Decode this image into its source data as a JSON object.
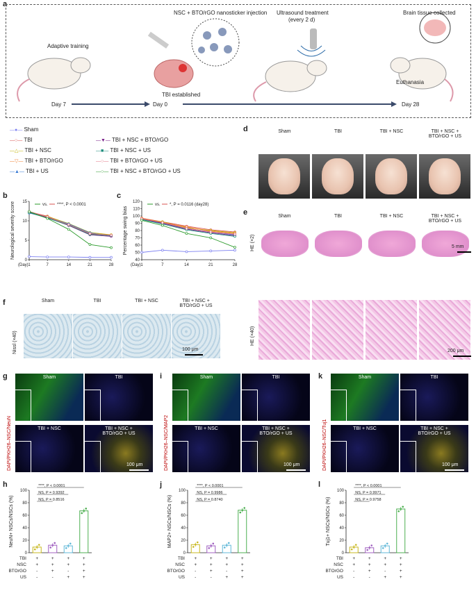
{
  "panels": {
    "a": "a",
    "b": "b",
    "c": "c",
    "d": "d",
    "e": "e",
    "f": "f",
    "g": "g",
    "h": "h",
    "i": "i",
    "j": "j",
    "k": "k",
    "l": "l"
  },
  "panel_a": {
    "steps": [
      "Adaptive training",
      "NSC + BTO/rGO nanosticker injection",
      "TBI established",
      "Ultrasound treatment",
      "(every 2 d)",
      "Brain tissue collected",
      "Euthanasia"
    ],
    "timeline": [
      "Day 7",
      "Day 0",
      "Day 28"
    ]
  },
  "legend": {
    "col1": [
      {
        "label": "Sham",
        "color": "#7b7ff0",
        "marker": "●"
      },
      {
        "label": "TBI",
        "color": "#d9534f",
        "marker": "○"
      },
      {
        "label": "TBI + NSC",
        "color": "#c0b300",
        "marker": "△"
      },
      {
        "label": "TBI + BTO/rGO",
        "color": "#f08030",
        "marker": "▽"
      },
      {
        "label": "TBI + US",
        "color": "#3a7bd5",
        "marker": "▲"
      }
    ],
    "col2": [
      {
        "label": "TBI + NSC + BTO/rGO",
        "color": "#7a1f8a",
        "marker": "▼"
      },
      {
        "label": "TBI + NSC + US",
        "color": "#1a8a7a",
        "marker": "■"
      },
      {
        "label": "TBI + BTO/rGO + US",
        "color": "#e07080",
        "marker": "○"
      },
      {
        "label": "TBI + NSC + BTO/rGO + US",
        "color": "#2a9a2a",
        "marker": "○"
      }
    ]
  },
  "chart_b": {
    "ylabel": "Neurological severity score",
    "annot_vs": "vs.",
    "annot_p": "****, P < 0.0001",
    "xlabel": "(Day)",
    "ticks_x": [
      "1",
      "7",
      "14",
      "21",
      "28"
    ],
    "ticks_y": [
      "0",
      "5",
      "10",
      "15"
    ]
  },
  "chart_c": {
    "ylabel": "Percentage swing bias",
    "annot_vs": "vs.",
    "annot_p": "*, P = 0.0116 (day28)",
    "xlabel": "(Day)",
    "ticks_x": [
      "1",
      "7",
      "14",
      "21",
      "28"
    ],
    "ticks_y": [
      "40",
      "50",
      "60",
      "70",
      "80",
      "90",
      "100",
      "110",
      "120"
    ]
  },
  "chart_data": [
    {
      "type": "line",
      "x": [
        1,
        7,
        14,
        21,
        28
      ],
      "ylim": [
        0,
        15
      ],
      "series": [
        {
          "name": "Sham",
          "values": [
            0.8,
            0.7,
            0.7,
            0.6,
            0.6
          ]
        },
        {
          "name": "TBI",
          "values": [
            12.3,
            11.2,
            9.1,
            6.6,
            6.2
          ]
        },
        {
          "name": "TBI + NSC",
          "values": [
            12.1,
            11.1,
            9.3,
            7.0,
            6.4
          ]
        },
        {
          "name": "TBI + BTO/rGO",
          "values": [
            12.2,
            11.0,
            9.0,
            6.8,
            6.3
          ]
        },
        {
          "name": "TBI + US",
          "values": [
            12.0,
            10.9,
            9.2,
            6.9,
            6.1
          ]
        },
        {
          "name": "TBI + NSC + BTO/rGO",
          "values": [
            12.3,
            10.8,
            8.8,
            6.4,
            6.0
          ]
        },
        {
          "name": "TBI + NSC + US",
          "values": [
            12.1,
            10.7,
            8.9,
            6.5,
            6.2
          ]
        },
        {
          "name": "TBI + BTO/rGO + US",
          "values": [
            12.4,
            11.0,
            9.0,
            6.7,
            6.3
          ]
        },
        {
          "name": "TBI + NSC + BTO/rGO + US",
          "values": [
            12.4,
            10.6,
            7.8,
            3.9,
            3.1
          ]
        }
      ]
    },
    {
      "type": "line",
      "x": [
        1,
        7,
        14,
        21,
        28
      ],
      "ylim": [
        40,
        120
      ],
      "series": [
        {
          "name": "Sham",
          "values": [
            50,
            53,
            51,
            52,
            53
          ]
        },
        {
          "name": "TBI",
          "values": [
            97,
            92,
            86,
            81,
            78
          ]
        },
        {
          "name": "TBI + NSC",
          "values": [
            96,
            92,
            84,
            80,
            77
          ]
        },
        {
          "name": "TBI + BTO/rGO",
          "values": [
            97,
            91,
            85,
            79,
            76
          ]
        },
        {
          "name": "TBI + US",
          "values": [
            95,
            90,
            83,
            78,
            74
          ]
        },
        {
          "name": "TBI + NSC + BTO/rGO",
          "values": [
            96,
            90,
            82,
            77,
            73
          ]
        },
        {
          "name": "TBI + NSC + US",
          "values": [
            95,
            89,
            81,
            76,
            72
          ]
        },
        {
          "name": "TBI + BTO/rGO + US",
          "values": [
            96,
            91,
            83,
            78,
            75
          ]
        },
        {
          "name": "TBI + NSC + BTO/rGO + US",
          "values": [
            94,
            87,
            76,
            70,
            57
          ]
        }
      ]
    },
    {
      "type": "bar",
      "ylabel": "NeuN+ NSCs/NSCs (%)",
      "categories": [
        "TBI+NSC",
        "TBI+NSC+BTOrGO",
        "TBI+NSC+US",
        "TBI+NSC+BTOrGO+US"
      ],
      "values": [
        9,
        12,
        11,
        67
      ],
      "ylim": [
        0,
        100
      ],
      "annotations": [
        "****, P < 0.0001",
        "NS, P = 0.9392",
        "NS, P = 0.8516"
      ]
    },
    {
      "type": "bar",
      "ylabel": "MAP2+ NSCs/NSCs (%)",
      "categories": [
        "TBI+NSC",
        "TBI+NSC+BTOrGO",
        "TBI+NSC+US",
        "TBI+NSC+BTOrGO+US"
      ],
      "values": [
        13,
        11,
        12,
        68
      ],
      "ylim": [
        0,
        100
      ],
      "annotations": [
        "****, P < 0.0001",
        "NS, P = 0.9986",
        "NS, P = 0.8740"
      ]
    },
    {
      "type": "bar",
      "ylabel": "Tuj1+ NSCs/NSCs (%)",
      "categories": [
        "TBI+NSC",
        "TBI+NSC+BTOrGO",
        "TBI+NSC+US",
        "TBI+NSC+BTOrGO+US"
      ],
      "values": [
        9,
        8,
        11,
        70
      ],
      "ylim": [
        0,
        100
      ],
      "annotations": [
        "****, P < 0.0001",
        "NS, P = 0.9971",
        "NS, P = 0.9758"
      ]
    }
  ],
  "bar_ticks_y": [
    "0",
    "20",
    "40",
    "60",
    "80",
    "100"
  ],
  "bar_colors": [
    "#c8b820",
    "#a060c0",
    "#60b8d8",
    "#4caf50"
  ],
  "treatment_table": {
    "rows": [
      "TBI",
      "NSC",
      "BTOrGO",
      "US"
    ],
    "cols": [
      [
        "+",
        "+",
        "-",
        "-"
      ],
      [
        "+",
        "+",
        "+",
        "-"
      ],
      [
        "+",
        "+",
        "-",
        "+"
      ],
      [
        "+",
        "+",
        "+",
        "+"
      ]
    ]
  },
  "panel_d": {
    "groups": [
      "Sham",
      "TBI",
      "TBI + NSC",
      "TBI + NSC +\nBTO/rGO + US"
    ]
  },
  "panel_e": {
    "groups": [
      "Sham",
      "TBI",
      "TBI + NSC",
      "TBI + NSC +\nBTO/rGO + US"
    ],
    "row1": "HE (×2)",
    "row2": "HE (×40)",
    "scale1": "5 mm",
    "scale2": "200 μm"
  },
  "panel_f": {
    "groups": [
      "Sham",
      "TBI",
      "TBI + NSC",
      "TBI + NSC +\nBTO/rGO + US"
    ],
    "row": "Nissl (×40)",
    "scale": "100 μm"
  },
  "panel_g": {
    "stain": "DAPI/PKH26–NSC/NeuN",
    "tl": "Sham",
    "tr": "TBI",
    "bl": "TBI + NSC",
    "br": "TBI + NSC +\nBTO/rGO + US",
    "scale": "100 μm"
  },
  "panel_i": {
    "stain": "DAPI/PKH26–NSC/MAP2",
    "tl": "Sham",
    "tr": "TBI",
    "bl": "TBI + NSC",
    "br": "TBI + NSC +\nBTO/rGO + US",
    "scale": "100 μm"
  },
  "panel_k": {
    "stain": "DAPI/PKH26–NSC/Tuj1",
    "tl": "Sham",
    "tr": "TBI",
    "bl": "TBI + NSC",
    "br": "TBI + NSC +\nBTO/rGO + US",
    "scale": "100 μm"
  }
}
